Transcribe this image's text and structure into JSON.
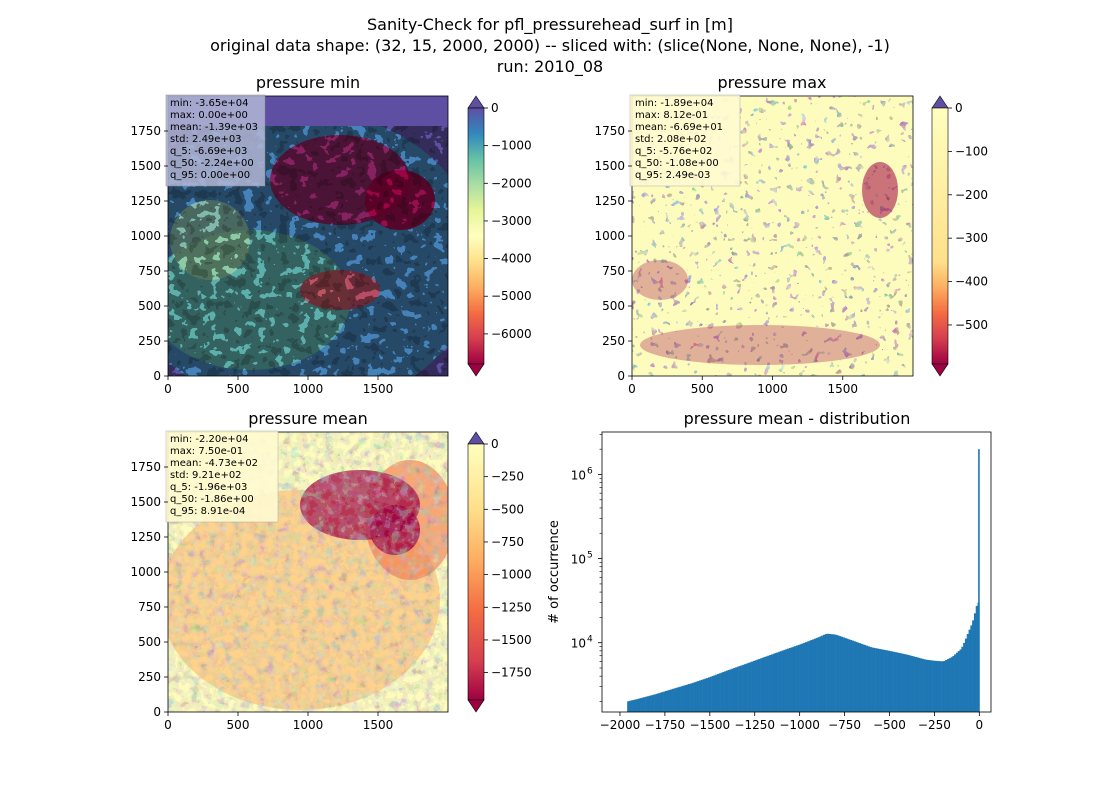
{
  "figure": {
    "title_lines": [
      "Sanity-Check for pfl_pressurehead_surf in [m]",
      "original data shape: (32, 15, 2000, 2000) -- sliced with: (slice(None, None, None), -1)",
      "run: 2010_08"
    ]
  },
  "chart_data": [
    {
      "type": "heatmap",
      "title": "pressure min",
      "xlim": [
        0,
        2000
      ],
      "ylim": [
        0,
        2000
      ],
      "xticks": [
        0,
        500,
        1000,
        1500
      ],
      "yticks": [
        0,
        250,
        500,
        750,
        1000,
        1250,
        1500,
        1750
      ],
      "colormap": "Spectral",
      "colorbar": {
        "range": [
          -6800,
          0
        ],
        "ticks": [
          0,
          -1000,
          -2000,
          -3000,
          -4000,
          -5000,
          -6000
        ],
        "tick_labels": [
          "0",
          "−1000",
          "−2000",
          "−3000",
          "−4000",
          "−5000",
          "−6000"
        ],
        "extend": "both"
      },
      "stats": [
        "min: -3.65e+04",
        "max: 0.00e+00",
        "mean: -1.39e+03",
        "std: 2.49e+03",
        "q_5: -6.69e+03",
        "q_50: -2.24e+00",
        "q_95: 0.00e+00"
      ],
      "stats_box_color": "#b3b6d6"
    },
    {
      "type": "heatmap",
      "title": "pressure max",
      "xlim": [
        0,
        2000
      ],
      "ylim": [
        0,
        2000
      ],
      "xticks": [
        0,
        500,
        1000,
        1500
      ],
      "yticks": [
        0,
        250,
        500,
        750,
        1000,
        1250,
        1500,
        1750
      ],
      "colormap": "Spectral",
      "colorbar": {
        "range": [
          -590,
          0
        ],
        "ticks": [
          0,
          -100,
          -200,
          -300,
          -400,
          -500
        ],
        "tick_labels": [
          "0",
          "−100",
          "−200",
          "−300",
          "−400",
          "−500"
        ],
        "extend": "both"
      },
      "stats": [
        "min: -1.89e+04",
        "max: 8.12e-01",
        "mean: -6.69e+01",
        "std: 2.08e+02",
        "q_5: -5.76e+02",
        "q_50: -1.08e+00",
        "q_95: 2.49e-03"
      ],
      "stats_box_color": "#fffbd0"
    },
    {
      "type": "heatmap",
      "title": "pressure mean",
      "xlim": [
        0,
        2000
      ],
      "ylim": [
        0,
        2000
      ],
      "xticks": [
        0,
        500,
        1000,
        1500
      ],
      "yticks": [
        0,
        250,
        500,
        750,
        1000,
        1250,
        1500,
        1750
      ],
      "colormap": "Spectral",
      "colorbar": {
        "range": [
          -1960,
          0
        ],
        "ticks": [
          0,
          -250,
          -500,
          -750,
          -1000,
          -1250,
          -1500,
          -1750
        ],
        "tick_labels": [
          "0",
          "−250",
          "−500",
          "−750",
          "−1000",
          "−1250",
          "−1500",
          "−1750"
        ],
        "extend": "both"
      },
      "stats": [
        "min: -2.20e+04",
        "max: 7.50e-01",
        "mean: -4.73e+02",
        "std: 9.21e+02",
        "q_5: -1.96e+03",
        "q_50: -1.86e+00",
        "q_95: 8.91e-04"
      ],
      "stats_box_color": "#fffbd0"
    },
    {
      "type": "bar",
      "title": "pressure mean - distribution",
      "ylabel": "# of occurrence",
      "xlabel": "",
      "yscale": "log",
      "xlim": [
        -2100,
        65
      ],
      "ylim": [
        1500,
        3200000
      ],
      "xticks": [
        -2000,
        -1750,
        -1500,
        -1250,
        -1000,
        -750,
        -500,
        -250,
        0
      ],
      "xtick_labels": [
        "−2000",
        "−1750",
        "−1500",
        "−1250",
        "−1000",
        "−750",
        "−500",
        "−250",
        "0"
      ],
      "yticks": [
        10000,
        100000,
        1000000
      ],
      "ytick_base": "10",
      "ytick_exponents": [
        "4",
        "5",
        "6"
      ],
      "bar_color": "#1f77b4",
      "bin_width": 10,
      "bins_start": -1960,
      "bins_end": 0,
      "profile_x": [
        -1960,
        -1900,
        -1800,
        -1700,
        -1600,
        -1500,
        -1400,
        -1300,
        -1200,
        -1100,
        -1000,
        -900,
        -850,
        -800,
        -700,
        -600,
        -500,
        -400,
        -300,
        -250,
        -200,
        -150,
        -100,
        -80,
        -60,
        -40,
        -30,
        -20,
        -10
      ],
      "profile_y": [
        2000,
        2150,
        2450,
        2850,
        3300,
        3900,
        4700,
        5600,
        6700,
        8000,
        9500,
        11500,
        12800,
        12500,
        10500,
        8800,
        8000,
        7200,
        6300,
        6100,
        6000,
        6800,
        8500,
        10500,
        13500,
        17000,
        20000,
        25000,
        30000
      ],
      "spike_x": 0,
      "spike_y": 2000000
    }
  ]
}
